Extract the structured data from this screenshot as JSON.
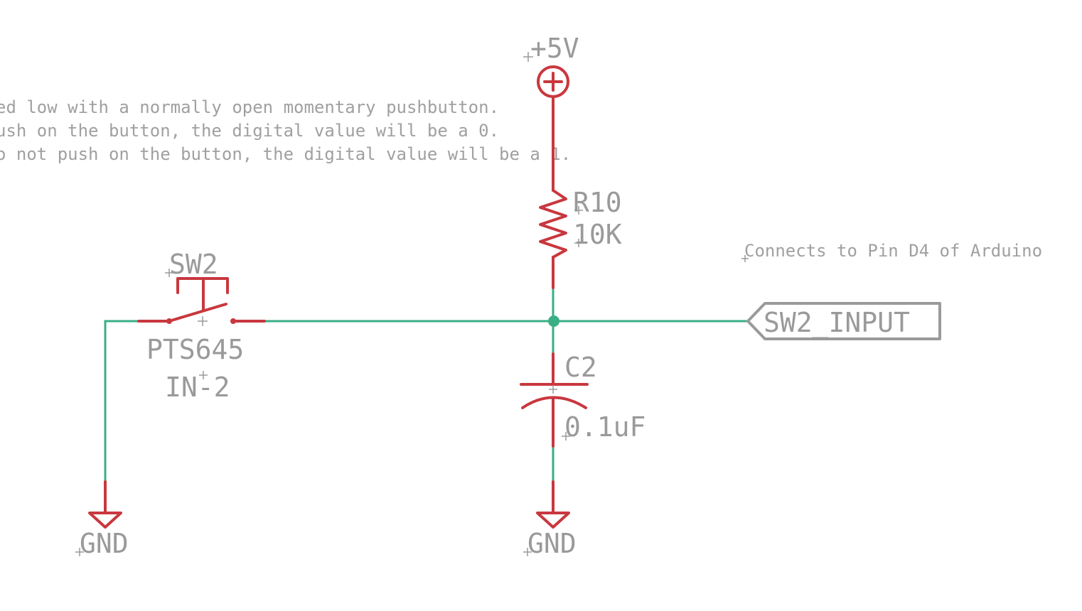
{
  "note": {
    "lines": [
      "ed low with a normally open momentary pushbutton.",
      "ush on the button, the digital value will be a 0.",
      "o not push on the button, the digital value will be a 1."
    ],
    "connection": "Connects to Pin D4 of Arduino"
  },
  "power": {
    "name": "+5V"
  },
  "resistor": {
    "ref": "R10",
    "value": "10K"
  },
  "capacitor": {
    "ref": "C2",
    "value": "0.1uF"
  },
  "switch": {
    "ref": "SW2",
    "part": "PTS645",
    "sub": "IN-2"
  },
  "net_label": "SW2_INPUT",
  "grounds": [
    "GND",
    "GND"
  ],
  "colors": {
    "wire": "#3aaf86",
    "part": "#c8383e",
    "text": "#9a9a9a"
  }
}
